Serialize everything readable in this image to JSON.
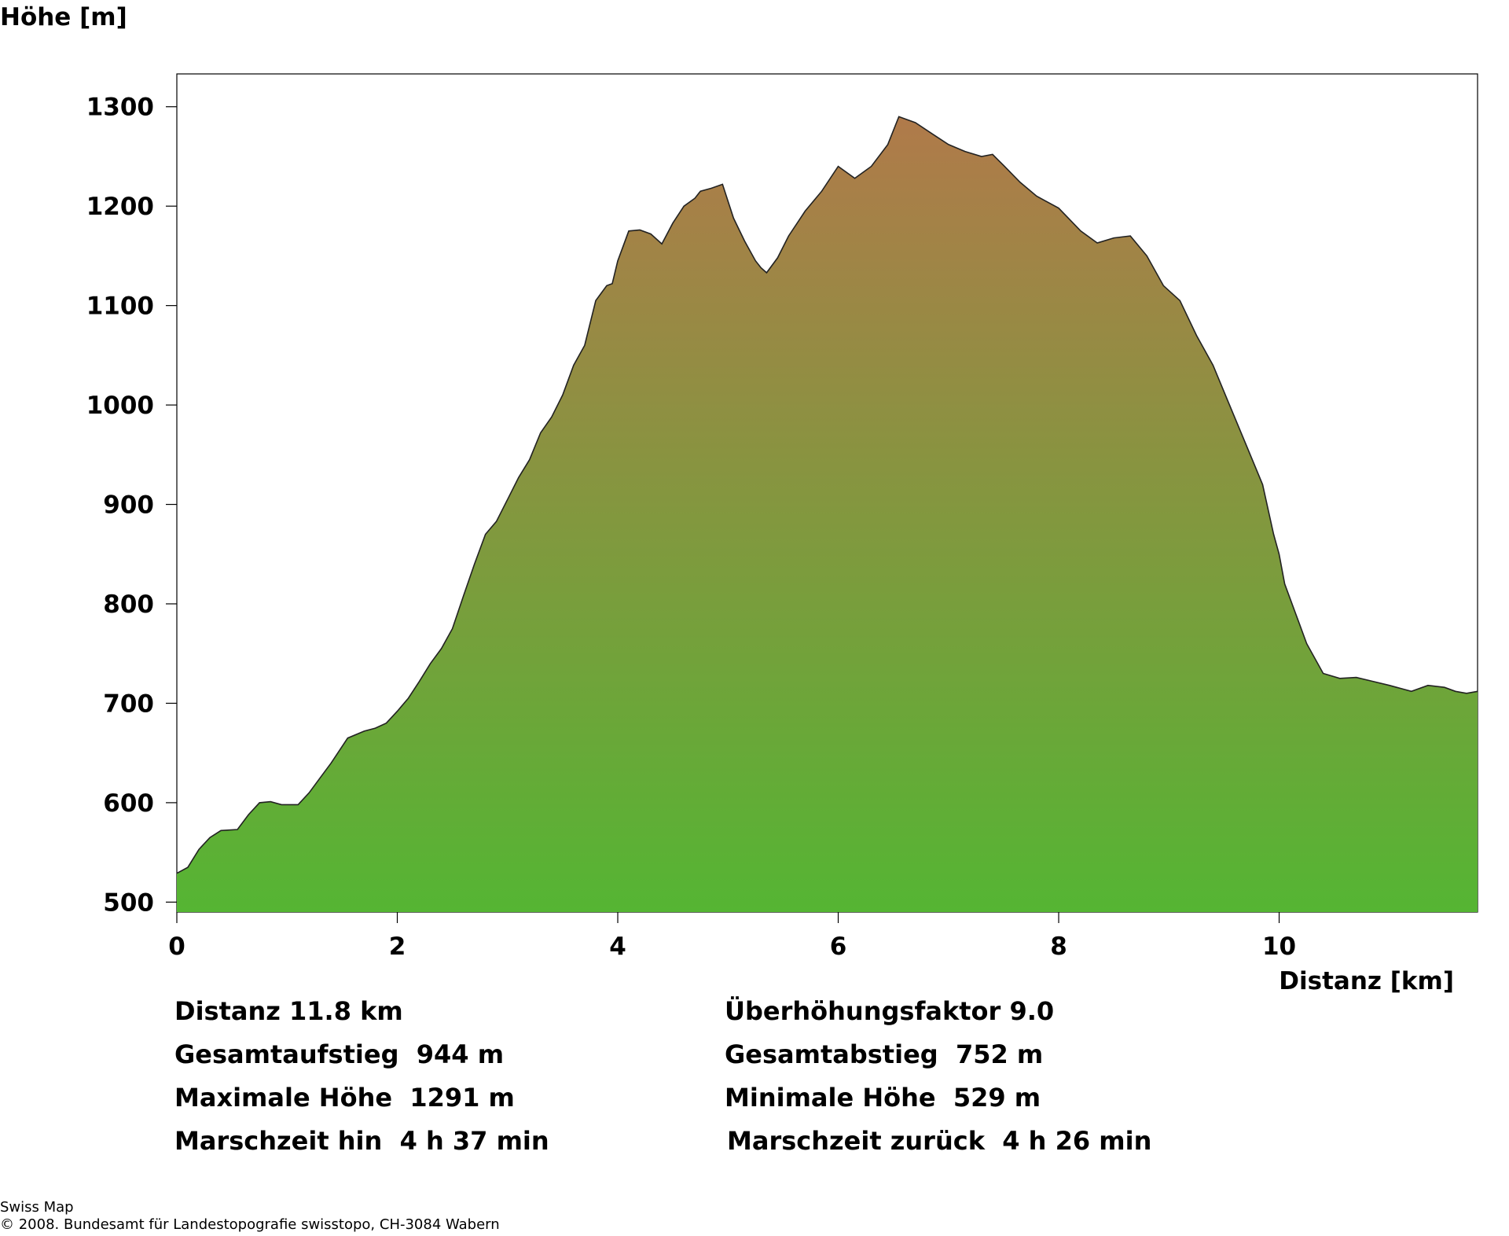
{
  "chart_data": {
    "type": "area",
    "ylabel": "Höhe [m]",
    "xlabel": "Distanz [km]",
    "xlim": [
      0,
      11.8
    ],
    "ylim": [
      490,
      1333
    ],
    "x_ticks": [
      0,
      2,
      4,
      6,
      8,
      10
    ],
    "y_ticks": [
      500,
      600,
      700,
      800,
      900,
      1000,
      1100,
      1200,
      1300
    ],
    "fill_colors": {
      "top": "#b07a4a",
      "bottom": "#55b533"
    },
    "grid": false,
    "series": [
      {
        "x": [
          0,
          0.1,
          0.2,
          0.3,
          0.4,
          0.55,
          0.65,
          0.75,
          0.85,
          0.95,
          1.1,
          1.2,
          1.3,
          1.4,
          1.55,
          1.7,
          1.8,
          1.9,
          2.0,
          2.1,
          2.2,
          2.3,
          2.4,
          2.5,
          2.6,
          2.7,
          2.8,
          2.9,
          3.0,
          3.1,
          3.2,
          3.3,
          3.4,
          3.5,
          3.6,
          3.7,
          3.8,
          3.9,
          3.95,
          4.0,
          4.05,
          4.1,
          4.2,
          4.3,
          4.4,
          4.5,
          4.6,
          4.7,
          4.75,
          4.85,
          4.95,
          5.05,
          5.15,
          5.25,
          5.3,
          5.35,
          5.45,
          5.55,
          5.7,
          5.85,
          6.0,
          6.15,
          6.3,
          6.45,
          6.55,
          6.7,
          6.85,
          7.0,
          7.15,
          7.3,
          7.4,
          7.5,
          7.65,
          7.8,
          8.0,
          8.2,
          8.35,
          8.5,
          8.65,
          8.8,
          8.95,
          9.1,
          9.25,
          9.4,
          9.55,
          9.7,
          9.85,
          9.95,
          10.0,
          10.05,
          10.15,
          10.25,
          10.4,
          10.55,
          10.7,
          10.85,
          11.0,
          11.2,
          11.35,
          11.5,
          11.6,
          11.7,
          11.8
        ],
        "values": [
          529,
          535,
          553,
          565,
          572,
          573,
          588,
          600,
          601,
          598,
          598,
          610,
          625,
          640,
          665,
          672,
          675,
          680,
          692,
          705,
          722,
          740,
          755,
          775,
          808,
          840,
          870,
          883,
          905,
          927,
          945,
          972,
          988,
          1010,
          1040,
          1060,
          1105,
          1120,
          1122,
          1145,
          1160,
          1175,
          1176,
          1172,
          1162,
          1183,
          1200,
          1208,
          1215,
          1218,
          1222,
          1188,
          1165,
          1145,
          1138,
          1133,
          1148,
          1170,
          1195,
          1215,
          1240,
          1228,
          1240,
          1262,
          1290,
          1284,
          1273,
          1262,
          1255,
          1250,
          1252,
          1241,
          1224,
          1210,
          1198,
          1175,
          1163,
          1168,
          1170,
          1150,
          1120,
          1105,
          1070,
          1040,
          1000,
          960,
          920,
          870,
          850,
          820,
          790,
          760,
          730,
          725,
          726,
          722,
          718,
          712,
          718,
          716,
          712,
          710,
          712
        ]
      }
    ]
  },
  "stats": {
    "distanz": "Distanz 11.8 km",
    "ueberhoehung": "Überhöhungsfaktor 9.0",
    "aufstieg": "Gesamtaufstieg  944 m",
    "abstieg": "Gesamtabstieg  752 m",
    "max_hoehe": "Maximale Höhe  1291 m",
    "min_hoehe": "Minimale Höhe  529 m",
    "marschzeit_hin": "Marschzeit hin  4 h 37 min",
    "marschzeit_zurueck": "Marschzeit zurück  4 h 26 min"
  },
  "footer": {
    "line1": "Swiss Map",
    "line2": "© 2008. Bundesamt für Landestopografie swisstopo, CH-3084 Wabern"
  }
}
